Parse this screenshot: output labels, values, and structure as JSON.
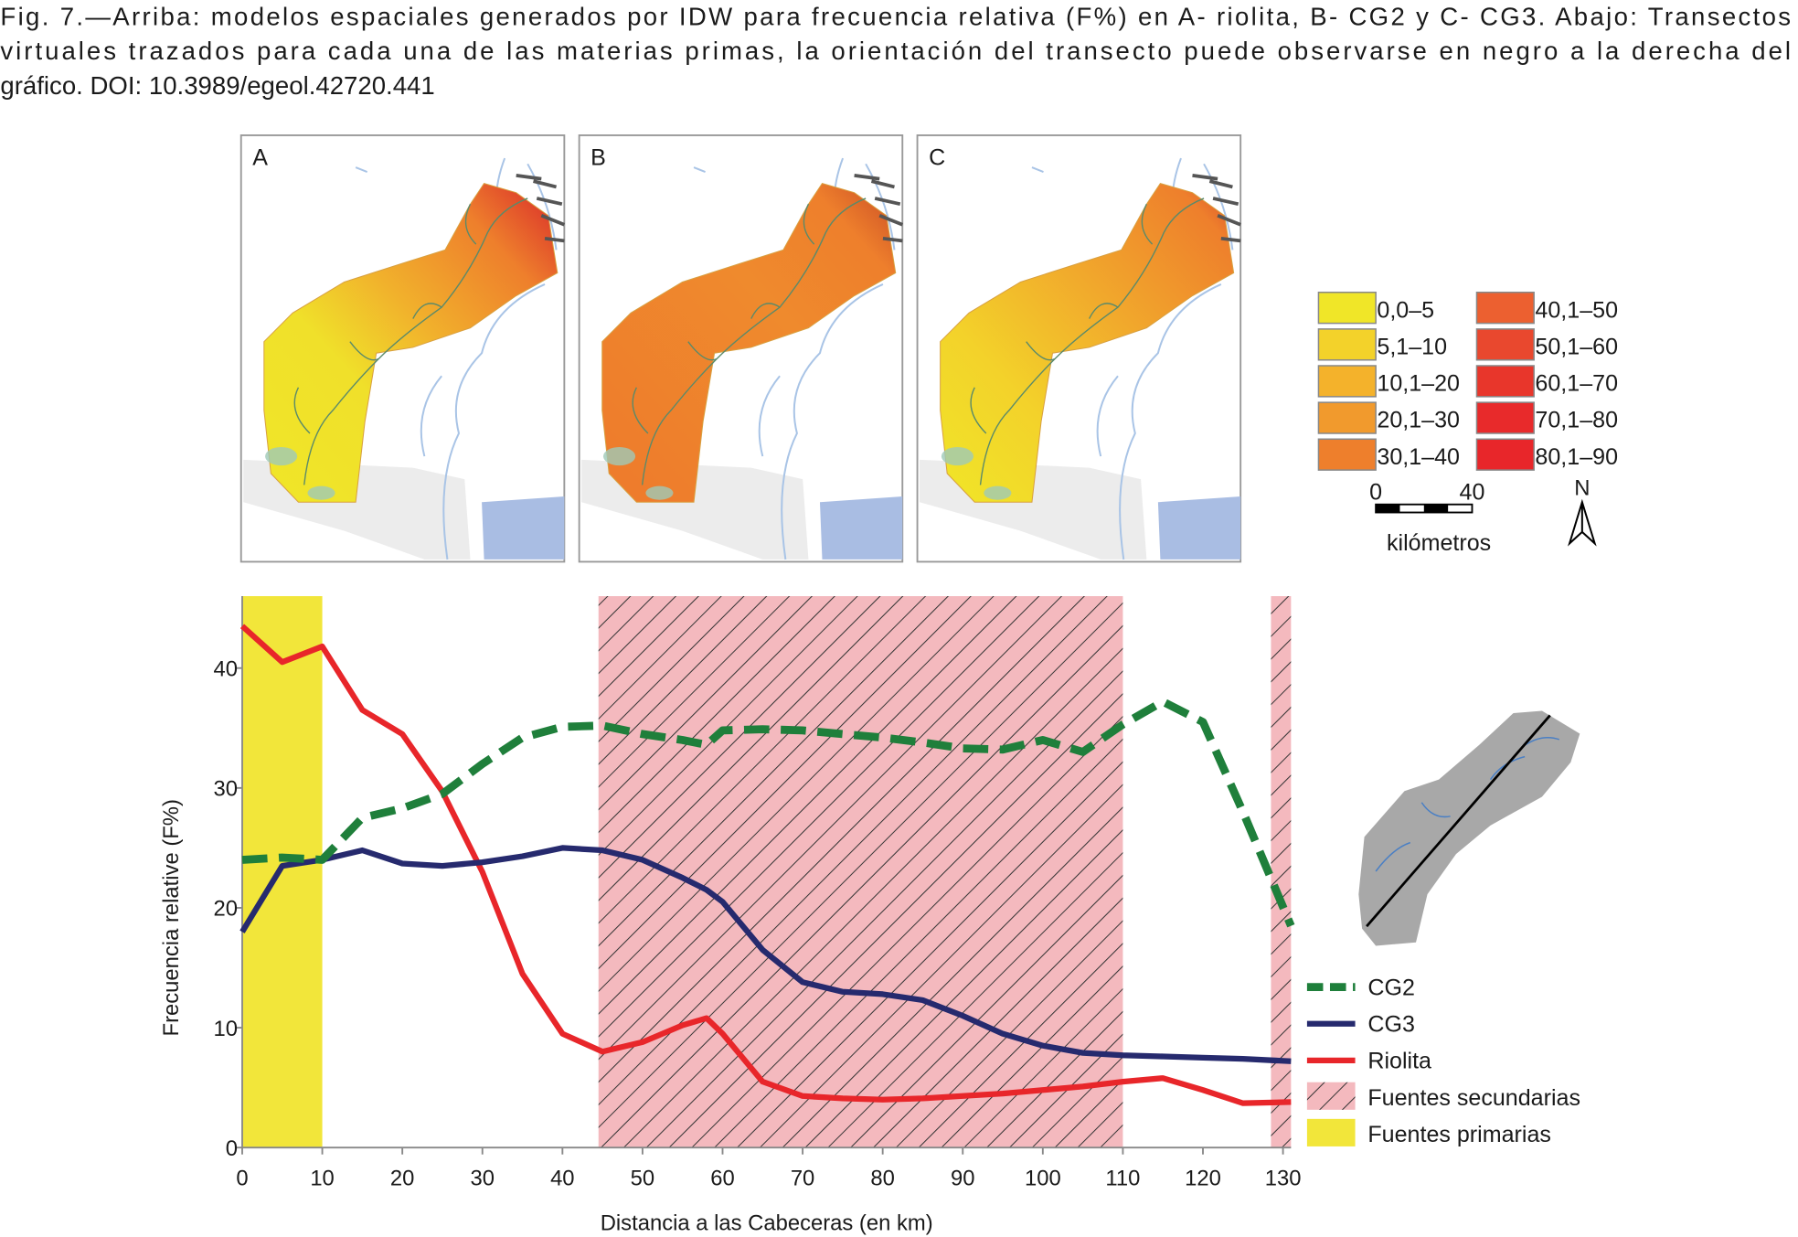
{
  "caption": [
    "Fig. 7.—Arriba: modelos espaciales generados por IDW para frecuencia relativa (F%) en A- riolita, B- CG2 y C- CG3. Abajo: Transectos",
    "virtuales trazados para cada una de las materias primas, la orientación del transecto puede observarse en negro a la derecha del",
    "gráfico. DOI: 10.3989/egeol.42720.441"
  ],
  "maps": {
    "panels": [
      "A",
      "B",
      "C"
    ],
    "legend": [
      {
        "label": "0,0–5",
        "color": "#f0e628"
      },
      {
        "label": "5,1–10",
        "color": "#f3d22a"
      },
      {
        "label": "10,1–20",
        "color": "#f4b22b"
      },
      {
        "label": "20,1–30",
        "color": "#f19a2d"
      },
      {
        "label": "30,1–40",
        "color": "#ee7f2c"
      },
      {
        "label": "40,1–50",
        "color": "#ec6030"
      },
      {
        "label": "50,1–60",
        "color": "#e9482e"
      },
      {
        "label": "60,1–70",
        "color": "#e8362b"
      },
      {
        "label": "70,1–80",
        "color": "#e82a2b"
      },
      {
        "label": "80,1–90",
        "color": "#e8262a"
      }
    ],
    "scale_bar": {
      "ticks": [
        0,
        40
      ],
      "unit": "kilómetros"
    },
    "north": "N"
  },
  "chart_data": {
    "type": "line",
    "xlabel": "Distancia a las Cabeceras (en km)",
    "ylabel": "Frecuencia relative (F%)",
    "x": [
      0,
      5,
      10,
      15,
      20,
      25,
      30,
      35,
      40,
      45,
      50,
      55,
      58,
      60,
      65,
      70,
      75,
      80,
      85,
      90,
      95,
      100,
      105,
      110,
      115,
      120,
      125,
      131
    ],
    "series": [
      {
        "name": "CG2",
        "color": "#1f7f3b",
        "dashed": true,
        "values": [
          24,
          24.2,
          24,
          27.5,
          28.3,
          29.5,
          32,
          34.2,
          35.1,
          35.2,
          34.5,
          34,
          33.6,
          34.8,
          34.9,
          34.8,
          34.5,
          34.2,
          33.8,
          33.3,
          33.2,
          34,
          33,
          35.3,
          37.2,
          35.5,
          28,
          18.5
        ]
      },
      {
        "name": "CG3",
        "color": "#262a6e",
        "values": [
          18,
          23.5,
          24,
          24.8,
          23.7,
          23.5,
          23.8,
          24.3,
          25,
          24.8,
          24,
          22.5,
          21.5,
          20.5,
          16.5,
          13.8,
          13,
          12.8,
          12.3,
          11,
          9.5,
          8.5,
          7.9,
          7.7,
          7.6,
          7.5,
          7.4,
          7.2
        ]
      },
      {
        "name": "Riolita",
        "color": "#e8262a",
        "values": [
          43.5,
          40.5,
          41.8,
          36.5,
          34.5,
          29.7,
          23,
          14.5,
          9.5,
          8,
          8.8,
          10.2,
          10.8,
          9.5,
          5.5,
          4.3,
          4.1,
          4,
          4.1,
          4.3,
          4.5,
          4.8,
          5.1,
          5.5,
          5.8,
          4.8,
          3.7,
          3.8
        ]
      }
    ],
    "bands": [
      {
        "name": "Fuentes secundarias",
        "color": "#f4b9be",
        "hatch": true,
        "spans": [
          [
            44.5,
            110
          ],
          [
            128.5,
            131
          ]
        ]
      },
      {
        "name": "Fuentes primarias",
        "color": "#f2e63a",
        "hatch": false,
        "spans": [
          [
            0,
            10
          ]
        ]
      }
    ],
    "xlim": [
      0,
      131
    ],
    "ylim": [
      0,
      46
    ],
    "xticks": [
      0,
      10,
      20,
      30,
      40,
      50,
      60,
      70,
      80,
      90,
      100,
      110,
      120,
      130
    ],
    "yticks": [
      0,
      10,
      20,
      30,
      40
    ]
  }
}
